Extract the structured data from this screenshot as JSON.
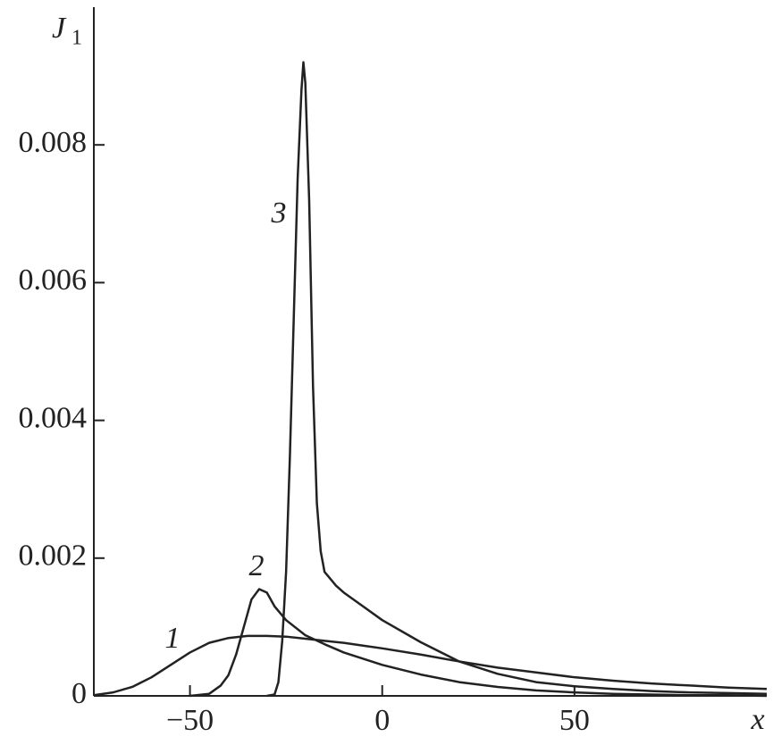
{
  "chart_data": {
    "type": "line",
    "ylabel": "J",
    "ylabel_subscript": "1",
    "xlabel": "x",
    "xlim": [
      -75,
      100
    ],
    "ylim": [
      0,
      0.01
    ],
    "xticks": [
      {
        "value": -50,
        "label": "−50"
      },
      0,
      50
    ],
    "yticks": [
      0,
      0.002,
      0.004,
      0.006,
      0.008
    ],
    "series": [
      {
        "name": "1",
        "color": "#222222",
        "x": [
          -75,
          -70,
          -65,
          -60,
          -55,
          -50,
          -45,
          -40,
          -35,
          -30,
          -25,
          -20,
          -15,
          -10,
          -5,
          0,
          10,
          20,
          30,
          40,
          50,
          60,
          70,
          80,
          90,
          100
        ],
        "values": [
          1e-05,
          5e-05,
          0.00013,
          0.00027,
          0.00045,
          0.00063,
          0.00077,
          0.00084,
          0.00087,
          0.00087,
          0.00086,
          0.00083,
          0.0008,
          0.00077,
          0.00073,
          0.00069,
          0.0006,
          0.0005,
          0.00041,
          0.00034,
          0.00027,
          0.00022,
          0.00018,
          0.00015,
          0.00012,
          0.0001
        ]
      },
      {
        "name": "2",
        "color": "#222222",
        "x": [
          -50,
          -45,
          -42,
          -40,
          -38,
          -36,
          -34,
          -32,
          -30,
          -28,
          -25,
          -20,
          -15,
          -10,
          0,
          10,
          20,
          30,
          40,
          50,
          60,
          70,
          80,
          90,
          100
        ],
        "values": [
          0,
          3e-05,
          0.00015,
          0.0003,
          0.0006,
          0.001,
          0.0014,
          0.00155,
          0.0015,
          0.0013,
          0.0011,
          0.00088,
          0.00075,
          0.00063,
          0.00045,
          0.00031,
          0.0002,
          0.00013,
          8e-05,
          5e-05,
          3e-05,
          2e-05,
          1e-05,
          1e-05,
          0
        ]
      },
      {
        "name": "3",
        "color": "#222222",
        "x": [
          -30,
          -28,
          -27,
          -26,
          -25,
          -24,
          -23,
          -22,
          -21,
          -20.5,
          -20,
          -19,
          -18,
          -17,
          -16,
          -15,
          -12,
          -10,
          -5,
          0,
          10,
          20,
          30,
          40,
          50,
          60,
          70,
          80,
          90,
          100
        ],
        "values": [
          0,
          2e-05,
          0.0002,
          0.0008,
          0.0018,
          0.0035,
          0.0055,
          0.0075,
          0.0088,
          0.0092,
          0.0089,
          0.0072,
          0.0045,
          0.0028,
          0.0021,
          0.0018,
          0.0016,
          0.0015,
          0.0013,
          0.0011,
          0.00078,
          0.0005,
          0.00032,
          0.0002,
          0.00014,
          0.0001,
          7e-05,
          5e-05,
          4e-05,
          3e-05
        ]
      }
    ]
  }
}
